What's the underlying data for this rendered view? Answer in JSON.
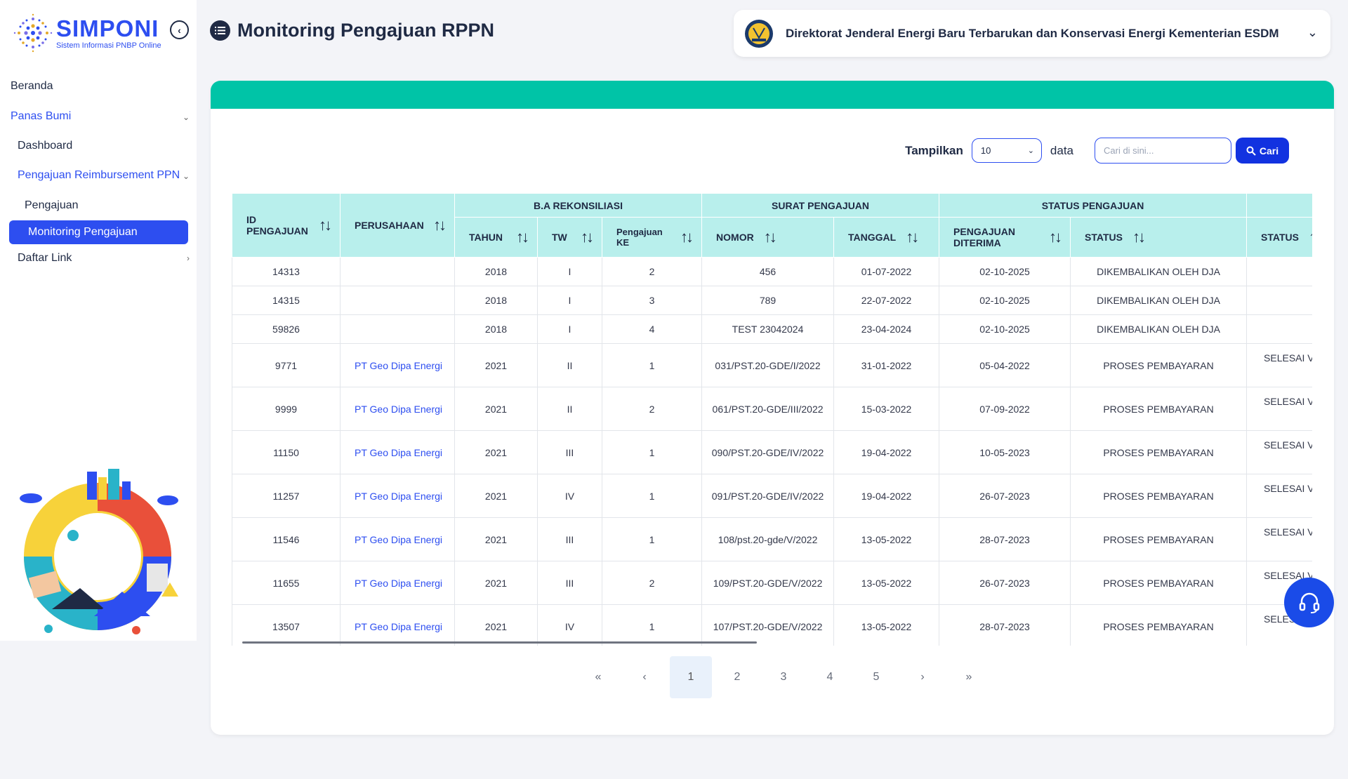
{
  "app": {
    "name": "SIMPONI",
    "subtitle": "Sistem Informasi PNBP Online"
  },
  "sidebar": {
    "items": [
      {
        "label": "Beranda"
      },
      {
        "label": "Panas Bumi"
      },
      {
        "label": "Dashboard"
      },
      {
        "label": "Pengajuan Reimbursement PPN"
      },
      {
        "label": "Pengajuan"
      },
      {
        "label": "Monitoring Pengajuan"
      },
      {
        "label": "Daftar Link"
      }
    ]
  },
  "header": {
    "title": "Monitoring Pengajuan RPPN",
    "organization": "Direktorat Jenderal Energi Baru Terbarukan dan Konservasi Energi Kementerian ESDM"
  },
  "controls": {
    "show_label": "Tampilkan",
    "page_size": "10",
    "data_label": "data",
    "search_placeholder": "Cari di sini...",
    "search_button": "Cari"
  },
  "table": {
    "groups": [
      "B.A REKONSILIASI",
      "SURAT PENGAJUAN",
      "STATUS PENGAJUAN"
    ],
    "columns": [
      "ID PENGAJUAN",
      "PERUSAHAAN",
      "TAHUN",
      "TW",
      "Pengajuan KE",
      "NOMOR",
      "TANGGAL",
      "PENGAJUAN DITERIMA",
      "STATUS",
      "STATUS"
    ],
    "rows": [
      [
        "14313",
        "",
        "2018",
        "I",
        "2",
        "456",
        "01-07-2022",
        "02-10-2025",
        "DIKEMBALIKAN OLEH DJA",
        ""
      ],
      [
        "14315",
        "",
        "2018",
        "I",
        "3",
        "789",
        "22-07-2022",
        "02-10-2025",
        "DIKEMBALIKAN OLEH DJA",
        ""
      ],
      [
        "59826",
        "",
        "2018",
        "I",
        "4",
        "TEST 23042024",
        "23-04-2024",
        "02-10-2025",
        "DIKEMBALIKAN OLEH DJA",
        ""
      ],
      [
        "9771",
        "PT Geo Dipa Energi",
        "2021",
        "II",
        "1",
        "031/PST.20-GDE/I/2022",
        "31-01-2022",
        "05-04-2022",
        "PROSES PEMBAYARAN",
        "SELESAI VE"
      ],
      [
        "9999",
        "PT Geo Dipa Energi",
        "2021",
        "II",
        "2",
        "061/PST.20-GDE/III/2022",
        "15-03-2022",
        "07-09-2022",
        "PROSES PEMBAYARAN",
        "SELESAI VE"
      ],
      [
        "11150",
        "PT Geo Dipa Energi",
        "2021",
        "III",
        "1",
        "090/PST.20-GDE/IV/2022",
        "19-04-2022",
        "10-05-2023",
        "PROSES PEMBAYARAN",
        "SELESAI VE"
      ],
      [
        "11257",
        "PT Geo Dipa Energi",
        "2021",
        "IV",
        "1",
        "091/PST.20-GDE/IV/2022",
        "19-04-2022",
        "26-07-2023",
        "PROSES PEMBAYARAN",
        "SELESAI VE"
      ],
      [
        "11546",
        "PT Geo Dipa Energi",
        "2021",
        "III",
        "1",
        "108/pst.20-gde/V/2022",
        "13-05-2022",
        "28-07-2023",
        "PROSES PEMBAYARAN",
        "SELESAI VE"
      ],
      [
        "11655",
        "PT Geo Dipa Energi",
        "2021",
        "III",
        "2",
        "109/PST.20-GDE/V/2022",
        "13-05-2022",
        "26-07-2023",
        "PROSES PEMBAYARAN",
        "SELESAI VE"
      ],
      [
        "13507",
        "PT Geo Dipa Energi",
        "2021",
        "IV",
        "1",
        "107/PST.20-GDE/V/2022",
        "13-05-2022",
        "28-07-2023",
        "PROSES PEMBAYARAN",
        "SELESAI VE"
      ]
    ]
  },
  "pagination": {
    "first": "«",
    "prev": "‹",
    "pages": [
      "1",
      "2",
      "3",
      "4",
      "5"
    ],
    "next": "›",
    "last": "»",
    "current": "1"
  },
  "colors": {
    "primary": "#2d4ef0",
    "teal_band": "#00c4a7",
    "header_bg": "#b8efec",
    "text_dark": "#1f2a44"
  },
  "icons": {
    "collapse": "chevron-left-circle-icon",
    "title": "list-icon",
    "search": "search-icon",
    "help": "headset-icon"
  }
}
